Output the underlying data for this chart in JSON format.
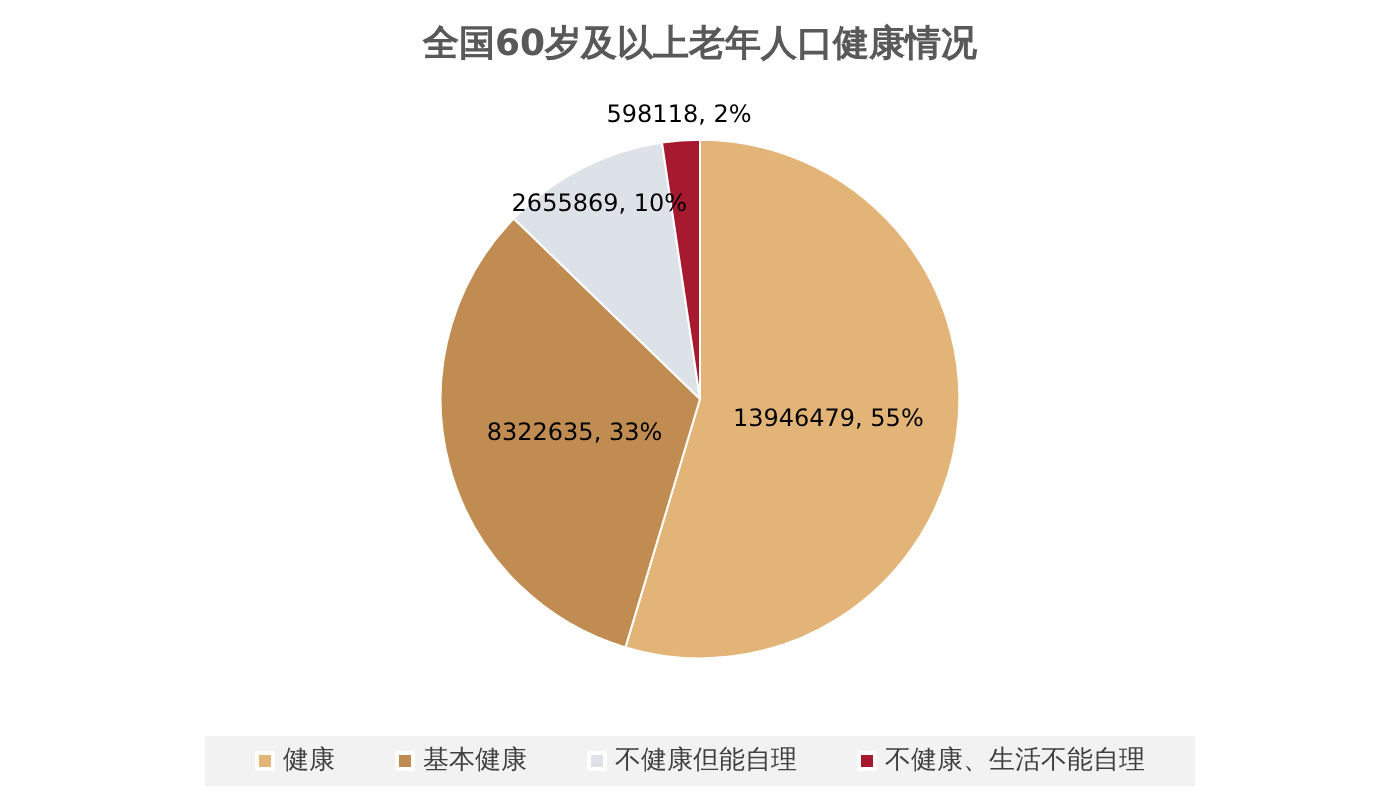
{
  "chart_data": {
    "type": "pie",
    "title": "全国60岁及以上老年人口健康情况",
    "categories": [
      "健康",
      "基本健康",
      "不健康但能自理",
      "不健康、生活不能自理"
    ],
    "values": [
      13946479,
      8322635,
      2655869,
      598118
    ],
    "colors": [
      "#e2b477",
      "#c08c52",
      "#dde1e8",
      "#a6192e"
    ],
    "value_labels": [
      "13946479, 55%",
      "8322635, 33%",
      "2655869, 10%",
      "598118, 2%"
    ],
    "legend": "bottom"
  }
}
